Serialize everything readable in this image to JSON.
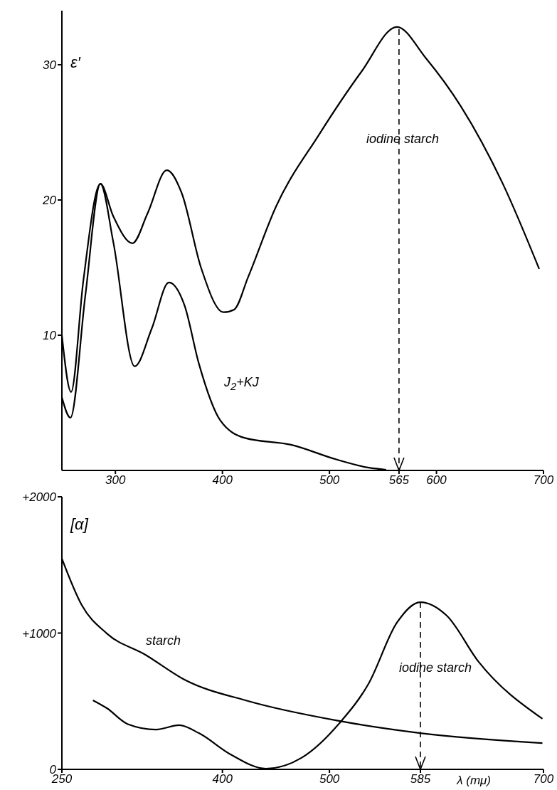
{
  "chart_data": [
    {
      "type": "line",
      "ylabel": "ε′",
      "xlim": [
        250,
        700
      ],
      "xticks": [
        300,
        400,
        500,
        565,
        600,
        700
      ],
      "ylim": [
        0,
        34
      ],
      "yticks": [
        10,
        20,
        30
      ],
      "marker": "none",
      "line_style": "solid",
      "ref_lines": [
        {
          "axis": "x",
          "value": 565,
          "line_style": "dashed",
          "color": "#000000"
        }
      ],
      "series": [
        {
          "name": "iodine starch",
          "color": "#000000",
          "x": [
            250,
            258.6,
            270,
            286,
            298,
            316,
            330,
            348,
            362,
            380,
            401,
            411,
            424,
            450,
            490,
            530,
            563,
            590,
            623,
            662.6,
            696
          ],
          "values": [
            10,
            5.8,
            14,
            21.2,
            18.8,
            16.8,
            19,
            22.2,
            20.5,
            15,
            11.7,
            11.9,
            14.3,
            19.5,
            24.8,
            29.5,
            32.8,
            30.5,
            26.9,
            21.1,
            14.9
          ]
        },
        {
          "name": "J$_{2}$+KJ",
          "color": "#000000",
          "x": [
            250,
            258,
            272,
            286,
            298,
            318,
            334,
            350,
            364.6,
            378,
            398,
            421,
            464,
            507,
            537,
            553
          ],
          "values": [
            5.4,
            3.9,
            13,
            21.2,
            16.9,
            7.7,
            10.5,
            13.9,
            12.2,
            7.9,
            3.7,
            2.4,
            1.9,
            0.8,
            0.2,
            0.05
          ]
        }
      ]
    },
    {
      "type": "line",
      "ylabel": "[α]",
      "xlabel": "λ (mμ)",
      "xlim": [
        250,
        700
      ],
      "xticks": [
        250,
        400,
        500,
        585,
        700
      ],
      "ylim": [
        0,
        2000
      ],
      "yticks": [
        0,
        {
          "value": 1000,
          "label": "+1000"
        },
        {
          "value": 2000,
          "label": "+2000"
        }
      ],
      "marker": "none",
      "line_style": "solid",
      "ref_lines": [
        {
          "axis": "x",
          "value": 585,
          "line_style": "dashed",
          "color": "#000000"
        }
      ],
      "series": [
        {
          "name": "starch",
          "color": "#000000",
          "x": [
            250,
            268.5,
            292,
            328,
            364.6,
            424,
            507,
            585,
            699
          ],
          "values": [
            1546,
            1206,
            997,
            841,
            658,
            501,
            358,
            266,
            193
          ]
        },
        {
          "name": "iodine starch",
          "color": "#000000",
          "x": [
            279,
            292,
            311.6,
            338,
            359.6,
            378,
            407.6,
            440.7,
            473.8,
            510,
            536.8,
            563,
            585,
            609.6,
            639.4,
            699
          ],
          "values": [
            507,
            449,
            332,
            292,
            324,
            266,
            110,
            5,
            84,
            345,
            632,
            1076,
            1227,
            1128,
            789,
            371
          ]
        }
      ]
    }
  ]
}
